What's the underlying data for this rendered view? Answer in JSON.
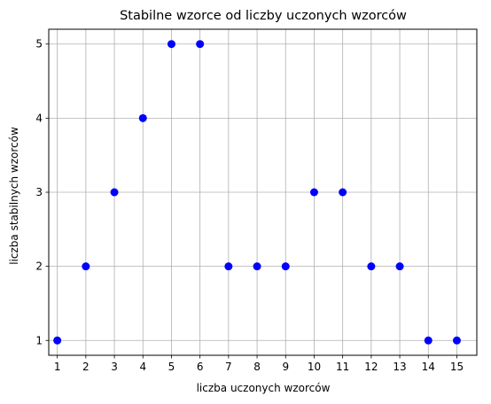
{
  "chart_data": {
    "type": "scatter",
    "title": "Stabilne wzorce od liczby uczonych wzorców",
    "xlabel": "liczba uczonych wzorców",
    "ylabel": "liczba stabilnych wzorców",
    "x": [
      1,
      2,
      3,
      4,
      5,
      6,
      7,
      8,
      9,
      10,
      11,
      12,
      13,
      14,
      15
    ],
    "y": [
      1,
      2,
      3,
      4,
      5,
      5,
      2,
      2,
      2,
      3,
      3,
      2,
      2,
      1,
      1
    ],
    "xticks": [
      "1",
      "2",
      "3",
      "4",
      "5",
      "6",
      "7",
      "8",
      "9",
      "10",
      "11",
      "12",
      "13",
      "14",
      "15"
    ],
    "yticks": [
      "1",
      "2",
      "3",
      "4",
      "5"
    ],
    "xlim": [
      0.7,
      15.7
    ],
    "ylim": [
      0.8,
      5.2
    ],
    "grid": true,
    "marker_color": "#0000ff",
    "grid_color": "#b0b0b0"
  }
}
